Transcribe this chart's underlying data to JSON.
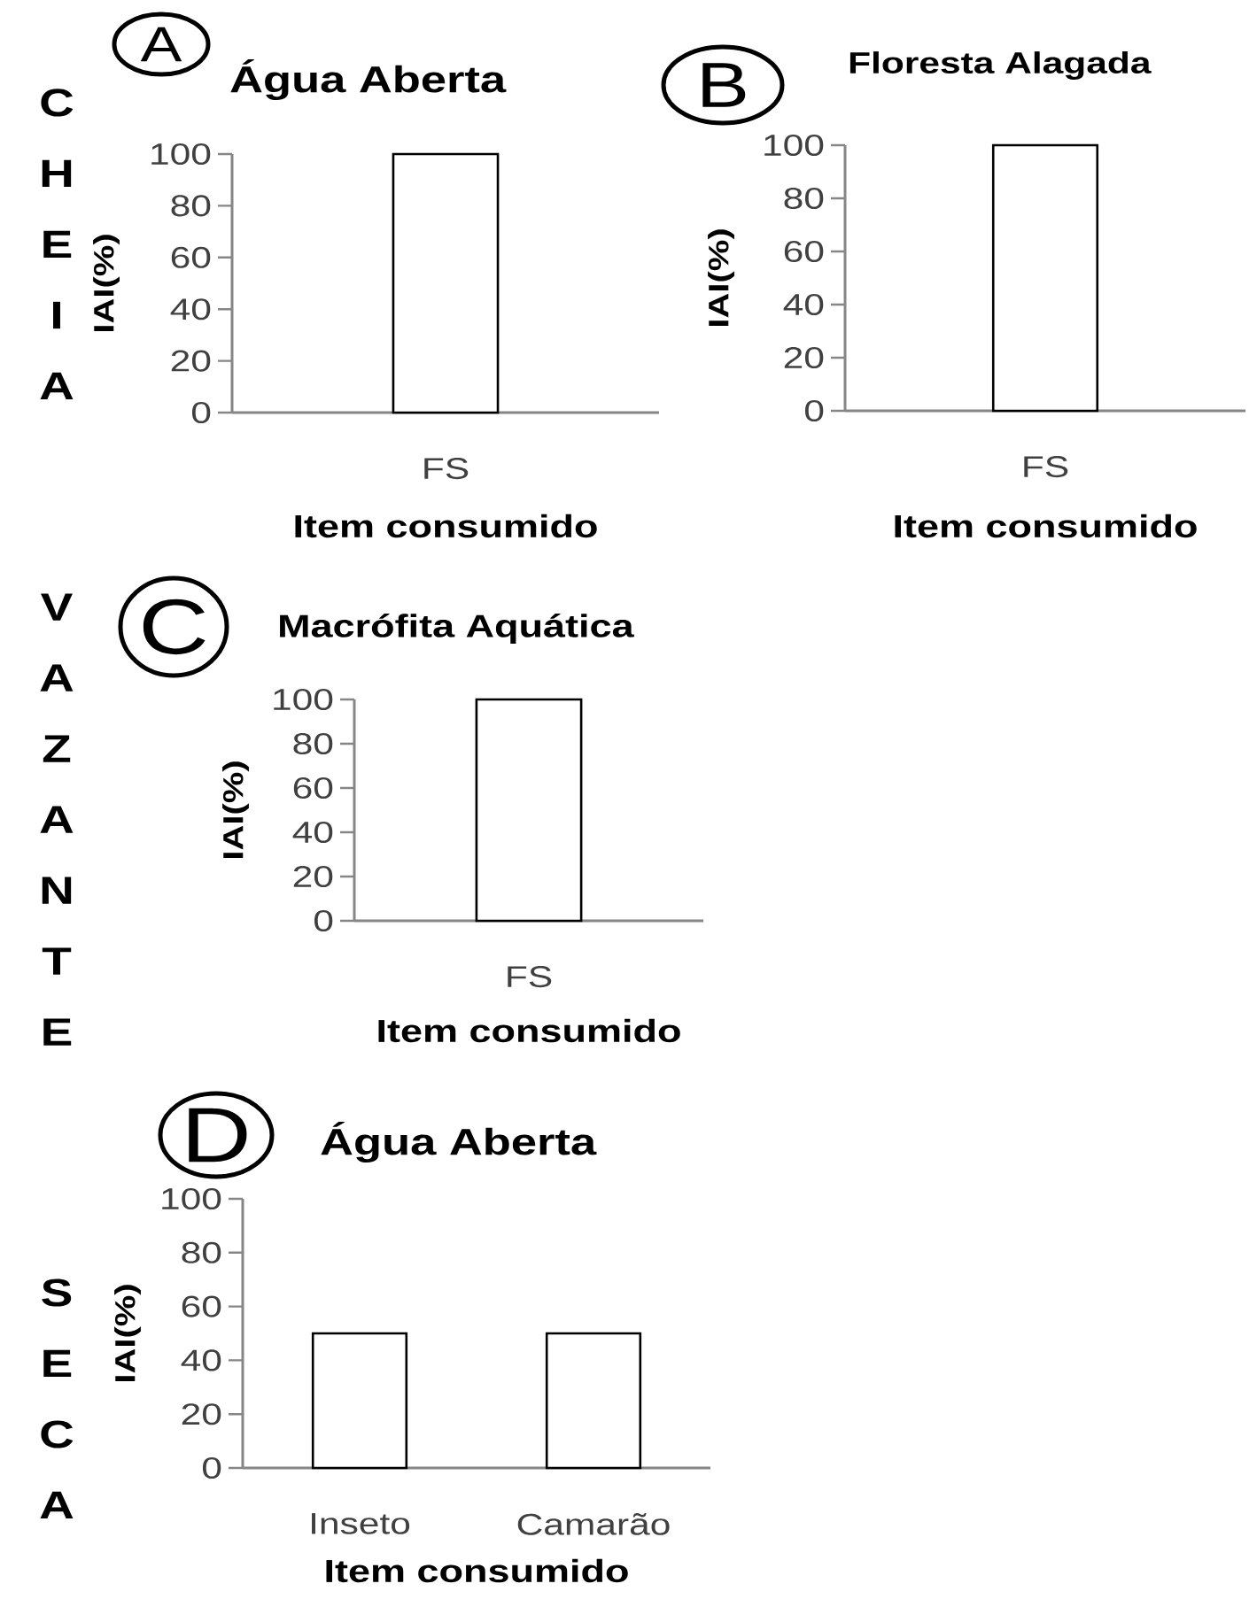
{
  "chart_data": [
    {
      "type": "bar",
      "title": "Água Aberta",
      "xlabel": "Item consumido",
      "ylabel": "IAI(%)",
      "categories": [
        "FS"
      ],
      "values": [
        100
      ],
      "color": "#ffffff",
      "ylim": [
        0,
        100
      ],
      "yticks": [
        0,
        20,
        40,
        60,
        80,
        100
      ],
      "annotations": [
        "A",
        "CHEIA"
      ]
    },
    {
      "type": "bar",
      "title": "Floresta Alagada",
      "xlabel": "Item consumido",
      "ylabel": "IAI(%)",
      "categories": [
        "FS"
      ],
      "values": [
        100
      ],
      "color": "#ffffff",
      "ylim": [
        0,
        100
      ],
      "yticks": [
        0,
        20,
        40,
        60,
        80,
        100
      ],
      "annotations": [
        "B"
      ]
    },
    {
      "type": "bar",
      "title": "Macrófita Aquática",
      "xlabel": "Item consumido",
      "ylabel": "IAI(%)",
      "categories": [
        "FS"
      ],
      "values": [
        100
      ],
      "color": "#ffffff",
      "ylim": [
        0,
        100
      ],
      "yticks": [
        0,
        20,
        40,
        60,
        80,
        100
      ],
      "annotations": [
        "C",
        "VAZANTE"
      ]
    },
    {
      "type": "bar",
      "title": "Água Aberta",
      "xlabel": "Item consumido",
      "ylabel": "IAI(%)",
      "categories": [
        "Inseto",
        "Camarão"
      ],
      "values": [
        50,
        50
      ],
      "color": "#ffffff",
      "ylim": [
        0,
        100
      ],
      "yticks": [
        0,
        20,
        40,
        60,
        80,
        100
      ],
      "annotations": [
        "D",
        "SECA"
      ]
    }
  ]
}
